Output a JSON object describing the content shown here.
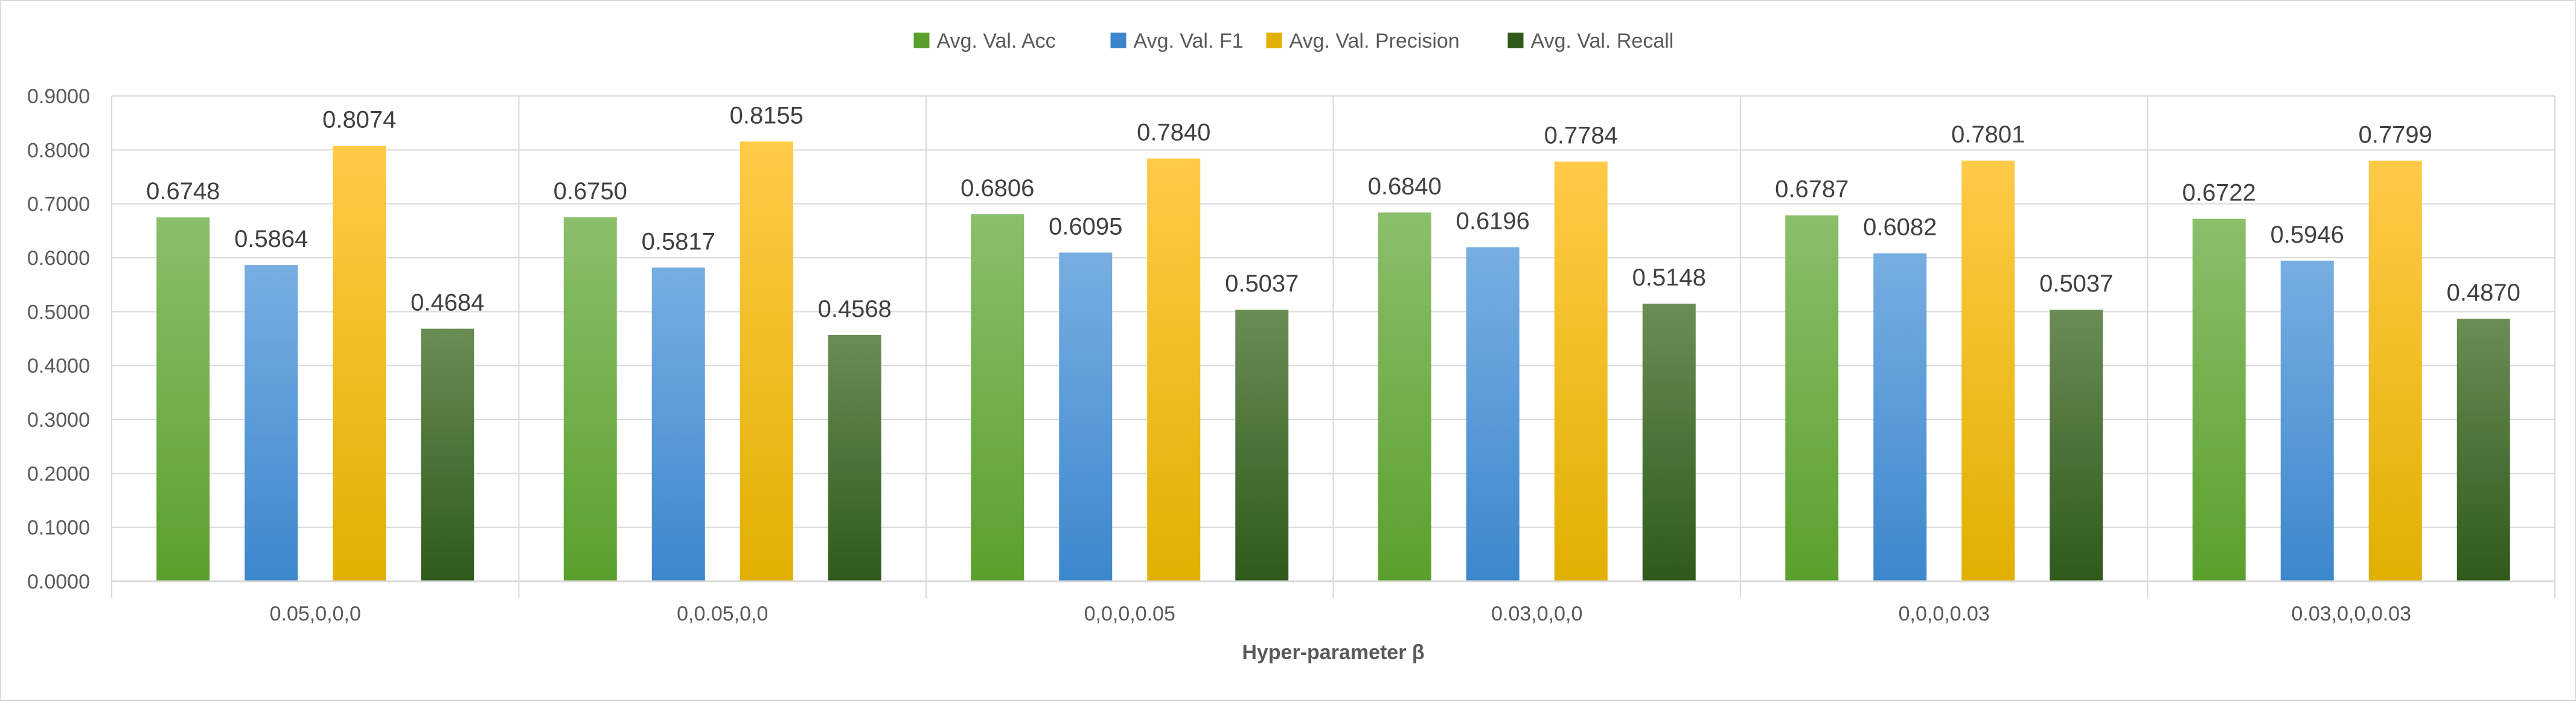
{
  "chart_data": {
    "type": "bar",
    "title": "",
    "xlabel": "Hyper-parameter β",
    "ylabel": "",
    "ylim": [
      0,
      0.9
    ],
    "yticks": [
      "0.0000",
      "0.1000",
      "0.2000",
      "0.3000",
      "0.4000",
      "0.5000",
      "0.6000",
      "0.7000",
      "0.8000",
      "0.9000"
    ],
    "ytick_values": [
      0,
      0.1,
      0.2,
      0.3,
      0.4,
      0.5,
      0.6,
      0.7,
      0.8,
      0.9
    ],
    "grid": true,
    "legend_position": "top-center",
    "categories": [
      "0.05,0,0,0",
      "0,0.05,0,0",
      "0,0,0,0.05",
      "0.03,0,0,0",
      "0,0,0,0.03",
      "0.03,0,0,0.03"
    ],
    "series": [
      {
        "name": "Avg. Val. Acc",
        "values": [
          0.6748,
          0.675,
          0.6806,
          0.684,
          0.6787,
          0.6722
        ],
        "labels": [
          "0.6748",
          "0.6750",
          "0.6806",
          "0.6840",
          "0.6787",
          "0.6722"
        ],
        "color_top": "#8bbf6b",
        "color_bottom": "#5aa02c"
      },
      {
        "name": "Avg. Val. F1",
        "values": [
          0.5864,
          0.5817,
          0.6095,
          0.6196,
          0.6082,
          0.5946
        ],
        "labels": [
          "0.5864",
          "0.5817",
          "0.6095",
          "0.6196",
          "0.6082",
          "0.5946"
        ],
        "color_top": "#77aee2",
        "color_bottom": "#3c87cc"
      },
      {
        "name": "Avg. Val. Precision",
        "values": [
          0.8074,
          0.8155,
          0.784,
          0.7784,
          0.7801,
          0.7799
        ],
        "labels": [
          "0.8074",
          "0.8155",
          "0.7840",
          "0.7784",
          "0.7801",
          "0.7799"
        ],
        "color_top": "#ffca47",
        "color_bottom": "#e1b000"
      },
      {
        "name": "Avg. Val. Recall",
        "values": [
          0.4684,
          0.4568,
          0.5037,
          0.5148,
          0.5037,
          0.487
        ],
        "labels": [
          "0.4684",
          "0.4568",
          "0.5037",
          "0.5148",
          "0.5037",
          "0.4870"
        ],
        "color_top": "#6a8d53",
        "color_bottom": "#2f5a1c"
      }
    ],
    "axis_text_color": "#595959",
    "label_text_color": "#404040",
    "grid_color": "#d9d9d9"
  }
}
